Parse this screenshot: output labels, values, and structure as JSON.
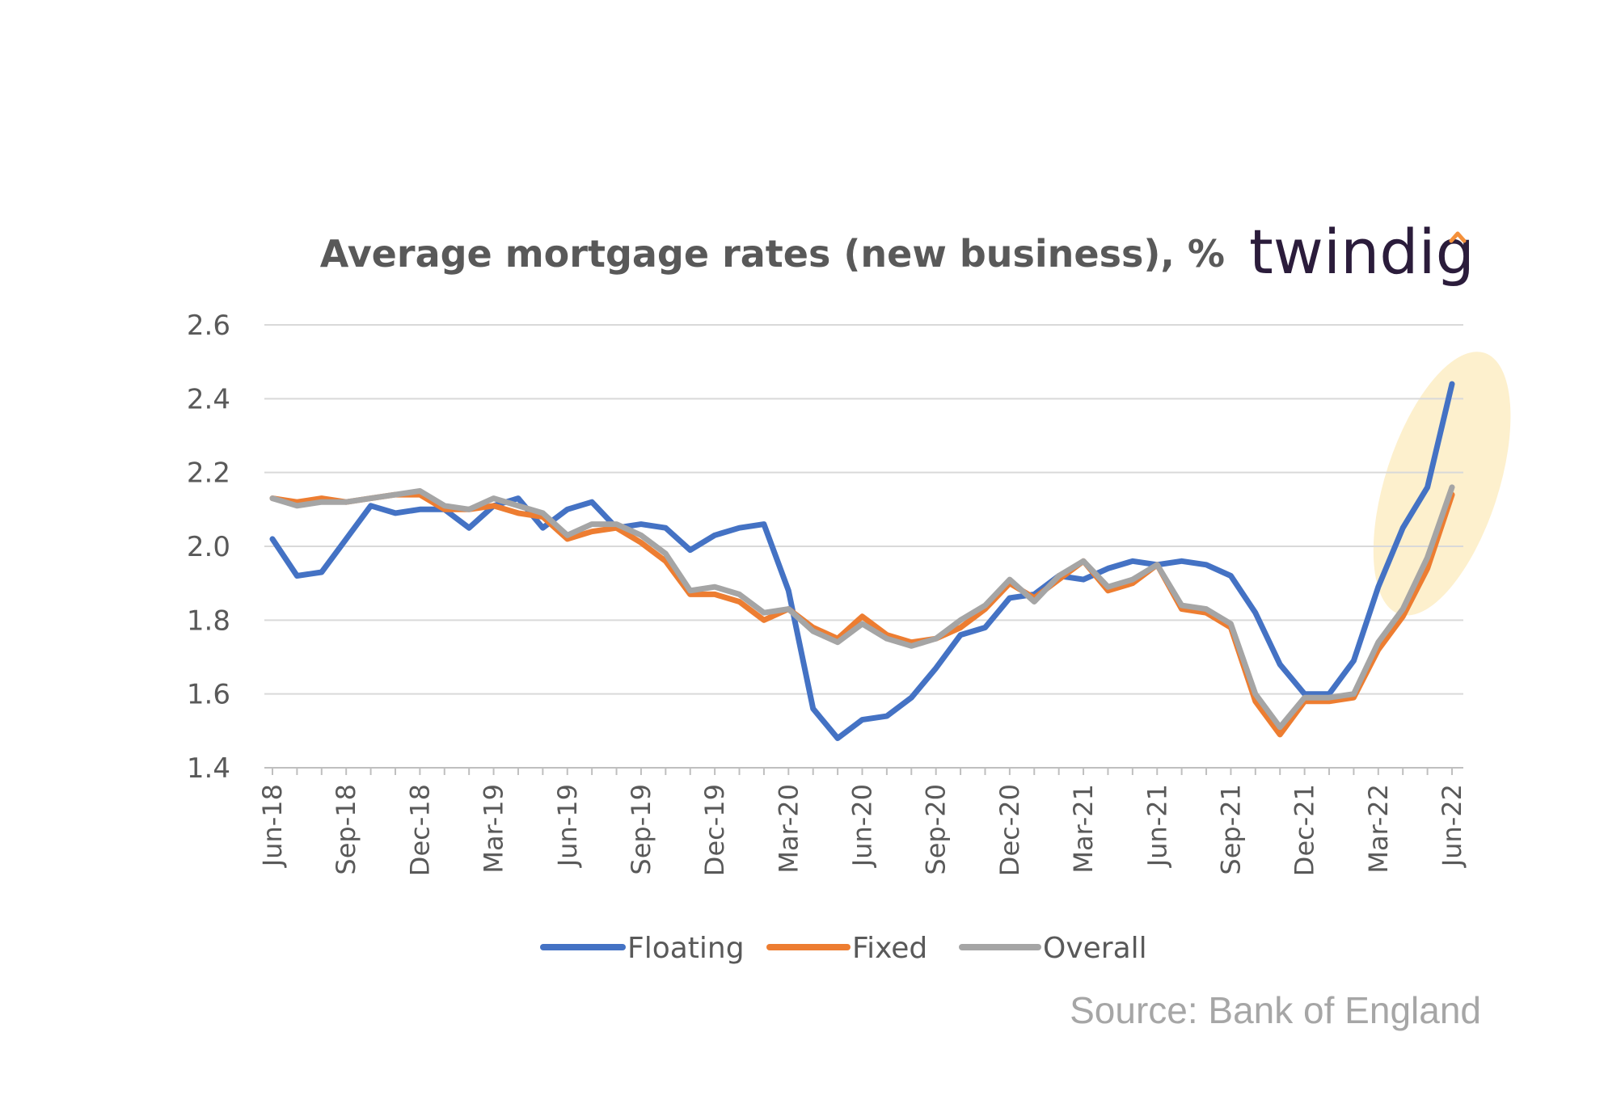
{
  "brand": {
    "name": "twindig",
    "accent_color": "#f4903a"
  },
  "source": "Source: Bank of England",
  "chart_data": {
    "type": "line",
    "title": "Average mortgage rates (new business), %",
    "xlabel": "",
    "ylabel": "",
    "ylim": [
      1.4,
      2.6
    ],
    "yticks": [
      "1.4",
      "1.6",
      "1.8",
      "2.0",
      "2.2",
      "2.4",
      "2.6"
    ],
    "x": [
      "Jun-18",
      "Jul-18",
      "Aug-18",
      "Sep-18",
      "Oct-18",
      "Nov-18",
      "Dec-18",
      "Jan-19",
      "Feb-19",
      "Mar-19",
      "Apr-19",
      "May-19",
      "Jun-19",
      "Jul-19",
      "Aug-19",
      "Sep-19",
      "Oct-19",
      "Nov-19",
      "Dec-19",
      "Jan-20",
      "Feb-20",
      "Mar-20",
      "Apr-20",
      "May-20",
      "Jun-20",
      "Jul-20",
      "Aug-20",
      "Sep-20",
      "Oct-20",
      "Nov-20",
      "Dec-20",
      "Jan-21",
      "Feb-21",
      "Mar-21",
      "Apr-21",
      "May-21",
      "Jun-21",
      "Jul-21",
      "Aug-21",
      "Sep-21",
      "Oct-21",
      "Nov-21",
      "Dec-21",
      "Jan-22",
      "Feb-22",
      "Mar-22",
      "Apr-22",
      "May-22",
      "Jun-22"
    ],
    "xtick_labels": [
      "Jun-18",
      "Sep-18",
      "Dec-18",
      "Mar-19",
      "Jun-19",
      "Sep-19",
      "Dec-19",
      "Mar-20",
      "Jun-20",
      "Sep-20",
      "Dec-20",
      "Mar-21",
      "Jun-21",
      "Sep-21",
      "Dec-21",
      "Mar-22",
      "Jun-22"
    ],
    "grid": true,
    "legend_position": "bottom",
    "highlight": {
      "from": "Apr-22",
      "to": "Jun-22",
      "color": "#fdf0cd"
    },
    "series": [
      {
        "name": "Floating",
        "color": "#4472c4",
        "values": [
          2.02,
          1.92,
          1.93,
          2.02,
          2.11,
          2.09,
          2.1,
          2.1,
          2.05,
          2.11,
          2.13,
          2.05,
          2.1,
          2.12,
          2.05,
          2.06,
          2.05,
          1.99,
          2.03,
          2.05,
          2.06,
          1.88,
          1.56,
          1.48,
          1.53,
          1.54,
          1.59,
          1.67,
          1.76,
          1.78,
          1.86,
          1.87,
          1.92,
          1.91,
          1.94,
          1.96,
          1.95,
          1.96,
          1.95,
          1.92,
          1.82,
          1.68,
          1.6,
          1.6,
          1.69,
          1.89,
          2.05,
          2.16,
          2.44
        ]
      },
      {
        "name": "Fixed",
        "color": "#ed7d31",
        "values": [
          2.13,
          2.12,
          2.13,
          2.12,
          2.13,
          2.14,
          2.14,
          2.1,
          2.1,
          2.11,
          2.09,
          2.08,
          2.02,
          2.04,
          2.05,
          2.01,
          1.96,
          1.87,
          1.87,
          1.85,
          1.8,
          1.83,
          1.78,
          1.75,
          1.81,
          1.76,
          1.74,
          1.75,
          1.78,
          1.83,
          1.9,
          1.86,
          1.91,
          1.96,
          1.88,
          1.9,
          1.95,
          1.83,
          1.82,
          1.78,
          1.58,
          1.49,
          1.58,
          1.58,
          1.59,
          1.72,
          1.81,
          1.94,
          2.14
        ]
      },
      {
        "name": "Overall",
        "color": "#a5a5a5",
        "values": [
          2.13,
          2.11,
          2.12,
          2.12,
          2.13,
          2.14,
          2.15,
          2.11,
          2.1,
          2.13,
          2.11,
          2.09,
          2.03,
          2.06,
          2.06,
          2.03,
          1.98,
          1.88,
          1.89,
          1.87,
          1.82,
          1.83,
          1.77,
          1.74,
          1.79,
          1.75,
          1.73,
          1.75,
          1.8,
          1.84,
          1.91,
          1.85,
          1.92,
          1.96,
          1.89,
          1.91,
          1.95,
          1.84,
          1.83,
          1.79,
          1.6,
          1.51,
          1.59,
          1.59,
          1.6,
          1.74,
          1.83,
          1.97,
          2.16
        ]
      }
    ]
  }
}
